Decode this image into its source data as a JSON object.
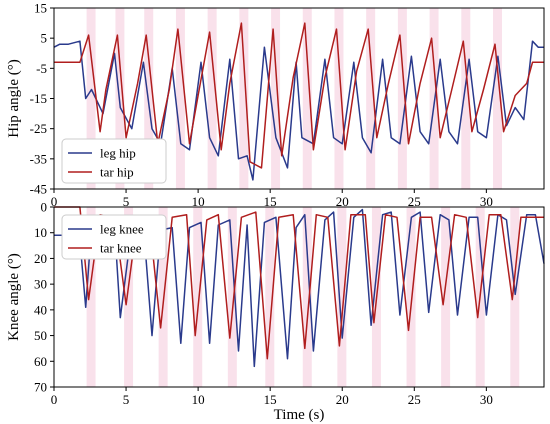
{
  "chart_data": [
    {
      "type": "line",
      "title": "",
      "xlabel": "",
      "ylabel": "Hip angle (°)",
      "xlim": [
        0,
        34
      ],
      "ylim": [
        15,
        -45
      ],
      "y_axis_inverted": true,
      "xticks": [
        0,
        5,
        10,
        15,
        20,
        25,
        30
      ],
      "yticks": [
        15,
        5,
        -5,
        -15,
        -25,
        -35,
        -45
      ],
      "ytick_labels": [
        "15",
        "5",
        "-5",
        "-15",
        "-25",
        "-35",
        "-45"
      ],
      "grid": false,
      "legend_position": "bottom-left",
      "shaded_regions": "light pink bands marking each tar stance phase",
      "shade_color": "#f7d9e6",
      "series": [
        {
          "name": "leg hip",
          "color": "#2a3a8c",
          "description": "oscillates roughly between +5 and -30 degrees, trough near -42 at t≈13.8",
          "x": [
            0,
            0.4,
            1,
            1.8,
            2.2,
            2.6,
            3.4,
            4.2,
            4.6,
            5.4,
            6.2,
            6.8,
            7.4,
            8.2,
            8.8,
            9.4,
            10.2,
            10.8,
            11.4,
            12.2,
            12.8,
            13.4,
            13.8,
            14.6,
            15.4,
            16.2,
            16.8,
            17.2,
            18,
            18.8,
            19.4,
            20,
            20.8,
            21.4,
            22,
            22.8,
            23.4,
            24,
            24.8,
            25.4,
            26,
            26.8,
            27.4,
            28,
            28.8,
            29.4,
            30,
            30.8,
            31.4,
            32,
            32.6,
            33.2,
            33.6,
            34
          ],
          "y": [
            2,
            3,
            3,
            4,
            -15,
            -12,
            -20,
            0,
            -18,
            -25,
            -3,
            -25,
            -30,
            -5,
            -30,
            -32,
            -3,
            -28,
            -34,
            -2,
            -35,
            -34,
            -42,
            2,
            -28,
            -38,
            -3,
            -28,
            -30,
            -2,
            -28,
            -30,
            -3,
            -28,
            -33,
            -2,
            -28,
            -30,
            -1,
            -26,
            -30,
            -2,
            -26,
            -30,
            -2,
            -26,
            -28,
            -1,
            -24,
            -18,
            -22,
            4,
            2,
            2
          ]
        },
        {
          "name": "tar hip",
          "color": "#b01e1e",
          "description": "phase-shifted oscillation roughly between +8 and -30 degrees, flat near -3 at the ends",
          "x": [
            0,
            0.6,
            1.4,
            1.8,
            2.4,
            3.2,
            3.6,
            4.4,
            5,
            5.8,
            6.4,
            7.2,
            8,
            8.6,
            9.4,
            10,
            10.8,
            11.6,
            12.2,
            13,
            13.6,
            14.4,
            15.2,
            15.8,
            16.6,
            17.4,
            18,
            18.8,
            19.6,
            20.2,
            21,
            21.8,
            22.4,
            23.2,
            24,
            24.6,
            25.4,
            26.2,
            26.8,
            27.6,
            28.4,
            29,
            29.8,
            30.6,
            31.2,
            32,
            32.8,
            33.2,
            34
          ],
          "y": [
            -3,
            -3,
            -3,
            -3,
            6,
            -26,
            -12,
            6,
            -28,
            -10,
            6,
            -30,
            -12,
            8,
            -30,
            -14,
            7,
            -32,
            -10,
            10,
            -36,
            -38,
            8,
            -34,
            -8,
            10,
            -32,
            -8,
            8,
            -32,
            -6,
            8,
            -28,
            -10,
            6,
            -30,
            -10,
            5,
            -28,
            -12,
            4,
            -26,
            -12,
            3,
            -26,
            -14,
            -10,
            -3,
            -3
          ]
        }
      ]
    },
    {
      "type": "line",
      "title": "",
      "xlabel": "Time (s)",
      "ylabel": "Knee angle (°)",
      "xlim": [
        0,
        34
      ],
      "ylim": [
        0,
        70
      ],
      "xticks": [
        0,
        5,
        10,
        15,
        20,
        25,
        30
      ],
      "yticks": [
        0,
        10,
        20,
        30,
        40,
        50,
        60,
        70
      ],
      "grid": false,
      "legend_position": "top-left",
      "shaded_regions": "light pink bands marking each tar stance phase",
      "shade_color": "#f7d9e6",
      "series": [
        {
          "name": "leg knee",
          "color": "#2a3a8c",
          "description": "sharp peaks of 40-62 degrees, baseline near 5-10 degrees",
          "x": [
            0,
            0.6,
            1.4,
            1.8,
            2.2,
            2.6,
            3.4,
            4.2,
            4.6,
            5.4,
            6.2,
            6.8,
            7.4,
            8.2,
            8.8,
            9.4,
            10.2,
            10.8,
            11.4,
            12.2,
            12.8,
            13.4,
            13.9,
            14.6,
            15.4,
            16.2,
            16.8,
            17.4,
            18,
            18.8,
            19.4,
            20,
            20.8,
            21.4,
            22,
            22.8,
            23.4,
            24,
            24.8,
            25.4,
            26,
            26.8,
            27.4,
            28,
            28.8,
            29.4,
            30,
            30.8,
            31.4,
            32,
            32.8,
            33.4,
            34
          ],
          "y": [
            11,
            11,
            11,
            13,
            39,
            8,
            7,
            7,
            43,
            8,
            7,
            50,
            9,
            8,
            53,
            8,
            6,
            53,
            7,
            5,
            56,
            7,
            62,
            6,
            4,
            59,
            8,
            3,
            56,
            5,
            2,
            51,
            4,
            1,
            46,
            3,
            2,
            42,
            4,
            2,
            41,
            3,
            5,
            42,
            4,
            4,
            42,
            3,
            5,
            34,
            3,
            3,
            22
          ]
        },
        {
          "name": "tar knee",
          "color": "#b01e1e",
          "description": "smooth peaks of 35-59 degrees shifted about 1 s after leg knee, returning near 3 degrees",
          "x": [
            0,
            0.8,
            1.6,
            1.8,
            2.4,
            3.2,
            4.2,
            5,
            5.8,
            6.6,
            7.4,
            8.2,
            9.2,
            9.8,
            10.6,
            11.4,
            12.2,
            13,
            14,
            14.8,
            15.6,
            16.6,
            17.4,
            18.2,
            19,
            19.8,
            20.6,
            21.6,
            22.2,
            23,
            23.8,
            24.6,
            25.4,
            26.2,
            27,
            27.8,
            28.6,
            29.4,
            30.2,
            31,
            31.8,
            32.4,
            33,
            34
          ],
          "y": [
            0,
            0,
            0,
            0,
            36,
            3,
            4,
            38,
            4,
            4,
            47,
            4,
            3,
            50,
            5,
            3,
            51,
            4,
            2,
            59,
            4,
            3,
            55,
            3,
            4,
            54,
            3,
            3,
            45,
            3,
            4,
            48,
            4,
            4,
            38,
            3,
            4,
            43,
            3,
            3,
            36,
            4,
            4,
            4
          ]
        }
      ]
    }
  ]
}
